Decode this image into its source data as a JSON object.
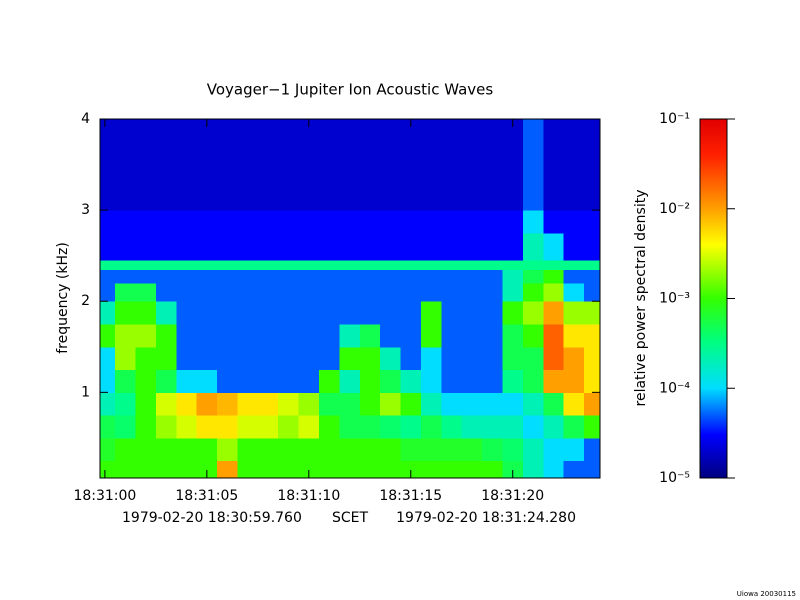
{
  "chart_data": {
    "type": "heatmap",
    "title": "Voyager−1 Jupiter Ion Acoustic Waves",
    "y_label": "frequency (kHz)",
    "colorbar_label": "relative power spectral density",
    "annotations": [
      "1979-02-20 18:30:59.760",
      "SCET",
      "1979-02-20 18:31:24.280"
    ],
    "credit": "Uiowa 20030115",
    "x": [
      0,
      1,
      2,
      3,
      4,
      5,
      6,
      7,
      8,
      9,
      10,
      11,
      12,
      13,
      14,
      15,
      16,
      17,
      18,
      19,
      20,
      21,
      22,
      23,
      24
    ],
    "xlim": [
      -0.24,
      24.28
    ],
    "xticks": [
      {
        "value": 0,
        "label": "18:31:00"
      },
      {
        "value": 5,
        "label": "18:31:05"
      },
      {
        "value": 10,
        "label": "18:31:10"
      },
      {
        "value": 15,
        "label": "18:31:15"
      },
      {
        "value": 20,
        "label": "18:31:20"
      }
    ],
    "ybins": [
      0.06,
      0.25,
      0.5,
      0.75,
      1.0,
      1.25,
      1.5,
      1.75,
      2.0,
      2.2,
      2.35,
      2.45,
      2.75,
      3.0,
      3.25,
      3.5,
      3.75,
      4.0
    ],
    "ylim": [
      0.06,
      4.0
    ],
    "yticks": [
      1,
      2,
      3,
      4
    ],
    "clim": [
      1e-05,
      0.1
    ],
    "cticks": [
      {
        "value": 1e-05,
        "label": "10⁻⁵"
      },
      {
        "value": 0.0001,
        "label": "10⁻⁴"
      },
      {
        "value": 0.001,
        "label": "10⁻³"
      },
      {
        "value": 0.01,
        "label": "10⁻²"
      },
      {
        "value": 0.1,
        "label": "10⁻¹"
      }
    ],
    "log_color": true,
    "z": [
      [
        0.001,
        0.001,
        0.001,
        0.001,
        0.001,
        0.001,
        0.01,
        0.001,
        0.001,
        0.001,
        0.001,
        0.001,
        0.001,
        0.001,
        0.001,
        0.001,
        0.001,
        0.001,
        0.001,
        0.001,
        0.0005,
        0.0002,
        0.0001,
        5e-05,
        5e-05
      ],
      [
        0.0007,
        0.001,
        0.001,
        0.001,
        0.001,
        0.001,
        0.002,
        0.001,
        0.001,
        0.001,
        0.001,
        0.001,
        0.001,
        0.001,
        0.001,
        0.0007,
        0.0007,
        0.0007,
        0.0007,
        0.0005,
        0.0004,
        0.0002,
        0.0001,
        0.0001,
        5e-05
      ],
      [
        0.0005,
        0.0004,
        0.001,
        0.002,
        0.003,
        0.005,
        0.005,
        0.003,
        0.003,
        0.002,
        0.003,
        0.001,
        0.0005,
        0.0005,
        0.0004,
        0.0003,
        0.0005,
        0.0003,
        0.0002,
        0.0002,
        0.0002,
        0.0001,
        0.0002,
        0.0005,
        0.001
      ],
      [
        0.0002,
        0.0003,
        0.001,
        0.003,
        0.005,
        0.01,
        0.008,
        0.005,
        0.005,
        0.003,
        0.002,
        0.0005,
        0.0005,
        0.001,
        0.002,
        0.001,
        0.0002,
        0.0001,
        0.0001,
        0.0001,
        0.0001,
        0.0002,
        0.0005,
        0.005,
        0.01
      ],
      [
        0.0001,
        0.0005,
        0.001,
        0.0005,
        0.0001,
        0.0001,
        5e-05,
        5e-05,
        5e-05,
        5e-05,
        5e-05,
        0.001,
        0.0002,
        0.001,
        0.0005,
        0.0002,
        0.0001,
        5e-05,
        5e-05,
        5e-05,
        0.0003,
        0.0005,
        0.01,
        0.01,
        0.005
      ],
      [
        0.0001,
        0.002,
        0.001,
        0.001,
        5e-05,
        5e-05,
        5e-05,
        5e-05,
        5e-05,
        5e-05,
        5e-05,
        5e-05,
        0.001,
        0.001,
        0.0002,
        5e-05,
        0.0001,
        5e-05,
        5e-05,
        5e-05,
        0.0005,
        0.0005,
        0.02,
        0.01,
        0.005
      ],
      [
        0.001,
        0.002,
        0.002,
        0.001,
        5e-05,
        5e-05,
        5e-05,
        5e-05,
        5e-05,
        5e-05,
        5e-05,
        5e-05,
        0.0002,
        0.0005,
        5e-05,
        5e-05,
        0.001,
        5e-05,
        5e-05,
        5e-05,
        0.0005,
        0.001,
        0.02,
        0.005,
        0.005
      ],
      [
        0.0002,
        0.001,
        0.001,
        0.0002,
        5e-05,
        5e-05,
        5e-05,
        5e-05,
        5e-05,
        5e-05,
        5e-05,
        5e-05,
        5e-05,
        5e-05,
        5e-05,
        5e-05,
        0.001,
        5e-05,
        5e-05,
        5e-05,
        0.001,
        0.002,
        0.01,
        0.002,
        0.002
      ],
      [
        5e-05,
        0.0005,
        0.0005,
        5e-05,
        5e-05,
        5e-05,
        5e-05,
        5e-05,
        5e-05,
        5e-05,
        5e-05,
        5e-05,
        5e-05,
        5e-05,
        5e-05,
        5e-05,
        5e-05,
        5e-05,
        5e-05,
        5e-05,
        0.0002,
        0.001,
        0.002,
        0.0001,
        5e-05
      ],
      [
        5e-05,
        5e-05,
        5e-05,
        5e-05,
        5e-05,
        5e-05,
        5e-05,
        5e-05,
        5e-05,
        5e-05,
        5e-05,
        5e-05,
        5e-05,
        5e-05,
        5e-05,
        5e-05,
        5e-05,
        5e-05,
        5e-05,
        5e-05,
        0.0002,
        0.0005,
        0.001,
        5e-05,
        5e-05
      ],
      [
        0.0003,
        0.0003,
        0.0003,
        0.0003,
        0.0003,
        0.0003,
        0.0003,
        0.0003,
        0.0003,
        0.0003,
        0.0003,
        0.0003,
        0.0003,
        0.0003,
        0.0003,
        0.0003,
        0.0003,
        0.0003,
        0.0003,
        0.0003,
        0.0003,
        0.0003,
        0.0003,
        0.0003,
        0.0003
      ],
      [
        3e-05,
        3e-05,
        3e-05,
        3e-05,
        3e-05,
        3e-05,
        3e-05,
        3e-05,
        3e-05,
        3e-05,
        3e-05,
        3e-05,
        3e-05,
        3e-05,
        3e-05,
        3e-05,
        3e-05,
        3e-05,
        3e-05,
        3e-05,
        3e-05,
        0.0002,
        0.0001,
        3e-05,
        3e-05
      ],
      [
        3e-05,
        3e-05,
        3e-05,
        3e-05,
        3e-05,
        3e-05,
        3e-05,
        3e-05,
        3e-05,
        3e-05,
        3e-05,
        3e-05,
        3e-05,
        3e-05,
        3e-05,
        3e-05,
        3e-05,
        3e-05,
        3e-05,
        3e-05,
        3e-05,
        0.0001,
        3e-05,
        3e-05,
        3e-05
      ],
      [
        2e-05,
        2e-05,
        2e-05,
        2e-05,
        2e-05,
        2e-05,
        2e-05,
        2e-05,
        2e-05,
        2e-05,
        2e-05,
        2e-05,
        2e-05,
        2e-05,
        2e-05,
        2e-05,
        2e-05,
        2e-05,
        2e-05,
        2e-05,
        2e-05,
        5e-05,
        2e-05,
        2e-05,
        2e-05
      ],
      [
        2e-05,
        2e-05,
        2e-05,
        2e-05,
        2e-05,
        2e-05,
        2e-05,
        2e-05,
        2e-05,
        2e-05,
        2e-05,
        2e-05,
        2e-05,
        2e-05,
        2e-05,
        2e-05,
        2e-05,
        2e-05,
        2e-05,
        2e-05,
        2e-05,
        5e-05,
        2e-05,
        2e-05,
        2e-05
      ],
      [
        2e-05,
        2e-05,
        2e-05,
        2e-05,
        2e-05,
        2e-05,
        2e-05,
        2e-05,
        2e-05,
        2e-05,
        2e-05,
        2e-05,
        2e-05,
        2e-05,
        2e-05,
        2e-05,
        2e-05,
        2e-05,
        2e-05,
        2e-05,
        2e-05,
        5e-05,
        2e-05,
        2e-05,
        2e-05
      ],
      [
        2e-05,
        2e-05,
        2e-05,
        2e-05,
        2e-05,
        2e-05,
        2e-05,
        2e-05,
        2e-05,
        2e-05,
        2e-05,
        2e-05,
        2e-05,
        2e-05,
        2e-05,
        2e-05,
        2e-05,
        2e-05,
        2e-05,
        2e-05,
        2e-05,
        5e-05,
        2e-05,
        2e-05,
        2e-05
      ]
    ]
  }
}
